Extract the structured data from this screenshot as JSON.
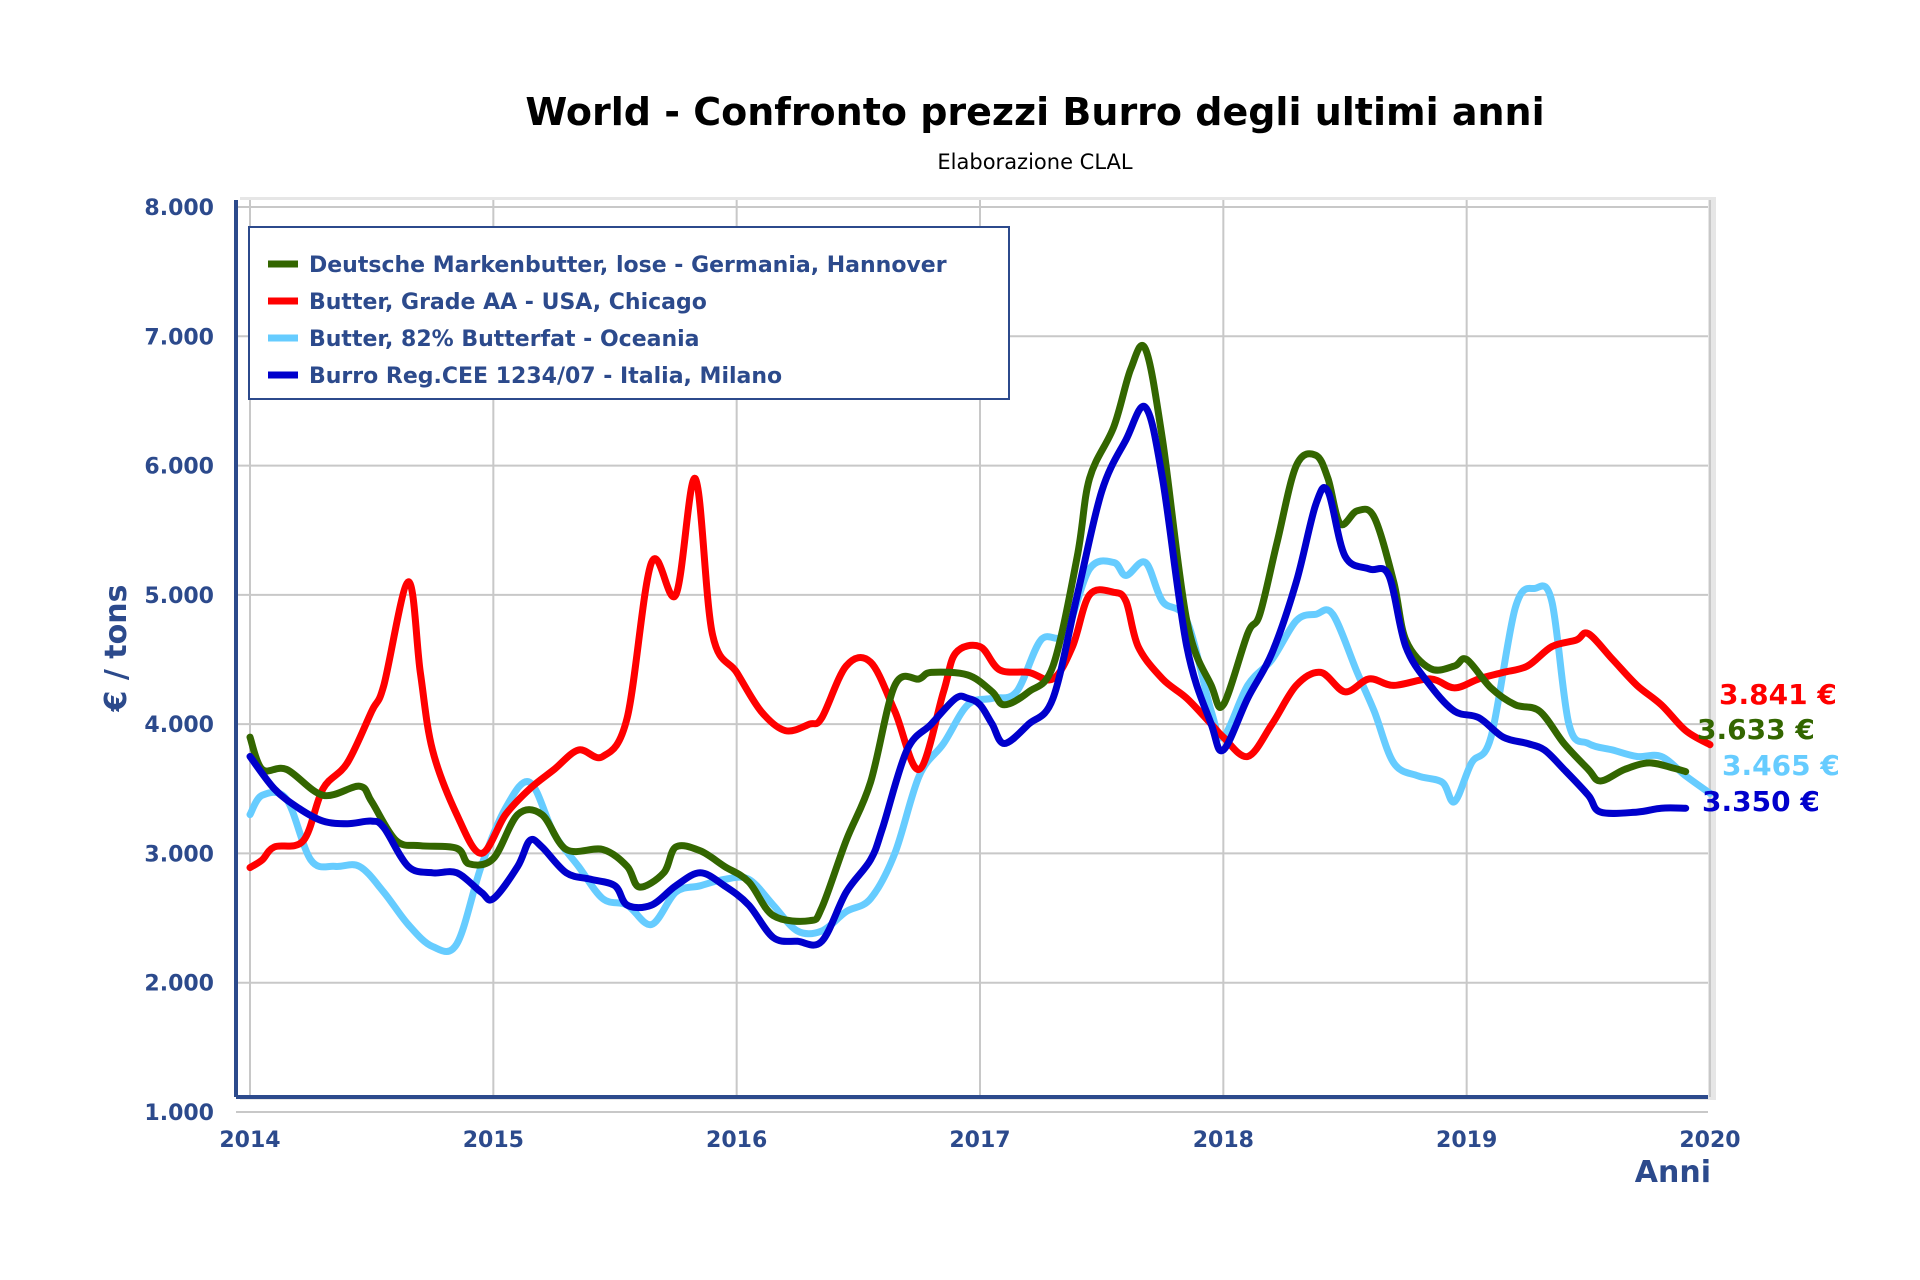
{
  "chart_data": {
    "type": "line",
    "title": "World - Confronto prezzi Burro degli ultimi anni",
    "subtitle": "Elaborazione CLAL",
    "ylabel": "€ / tons",
    "xlabel": "Anni",
    "xlim": [
      2014,
      2020
    ],
    "ylim": [
      1000,
      8000
    ],
    "x_ticks": [
      "2014",
      "2015",
      "2016",
      "2017",
      "2018",
      "2019",
      "2020"
    ],
    "y_ticks": [
      "1.000",
      "2.000",
      "3.000",
      "4.000",
      "5.000",
      "6.000",
      "7.000",
      "8.000"
    ],
    "grid": true,
    "legend_position": "top-left",
    "series": [
      {
        "name": "Deutsche Markenbutter, lose - Germania, Hannover",
        "color": "#336600",
        "end_label": "3.633 €",
        "points": [
          [
            2014.0,
            3900
          ],
          [
            2014.05,
            3650
          ],
          [
            2014.15,
            3650
          ],
          [
            2014.3,
            3450
          ],
          [
            2014.45,
            3520
          ],
          [
            2014.5,
            3400
          ],
          [
            2014.6,
            3100
          ],
          [
            2014.7,
            3060
          ],
          [
            2014.85,
            3040
          ],
          [
            2014.9,
            2920
          ],
          [
            2015.0,
            2960
          ],
          [
            2015.1,
            3300
          ],
          [
            2015.2,
            3300
          ],
          [
            2015.3,
            3030
          ],
          [
            2015.45,
            3030
          ],
          [
            2015.55,
            2900
          ],
          [
            2015.6,
            2740
          ],
          [
            2015.7,
            2850
          ],
          [
            2015.75,
            3050
          ],
          [
            2015.85,
            3020
          ],
          [
            2015.95,
            2900
          ],
          [
            2016.05,
            2780
          ],
          [
            2016.15,
            2520
          ],
          [
            2016.3,
            2480
          ],
          [
            2016.35,
            2580
          ],
          [
            2016.45,
            3100
          ],
          [
            2016.55,
            3550
          ],
          [
            2016.65,
            4300
          ],
          [
            2016.75,
            4350
          ],
          [
            2016.8,
            4400
          ],
          [
            2016.95,
            4380
          ],
          [
            2017.05,
            4250
          ],
          [
            2017.1,
            4150
          ],
          [
            2017.2,
            4250
          ],
          [
            2017.3,
            4450
          ],
          [
            2017.4,
            5300
          ],
          [
            2017.45,
            5900
          ],
          [
            2017.55,
            6300
          ],
          [
            2017.62,
            6750
          ],
          [
            2017.68,
            6900
          ],
          [
            2017.75,
            6200
          ],
          [
            2017.85,
            4800
          ],
          [
            2017.95,
            4300
          ],
          [
            2018.0,
            4150
          ],
          [
            2018.1,
            4700
          ],
          [
            2018.15,
            4850
          ],
          [
            2018.22,
            5400
          ],
          [
            2018.3,
            6000
          ],
          [
            2018.38,
            6080
          ],
          [
            2018.43,
            5900
          ],
          [
            2018.48,
            5550
          ],
          [
            2018.55,
            5650
          ],
          [
            2018.62,
            5600
          ],
          [
            2018.7,
            5100
          ],
          [
            2018.75,
            4650
          ],
          [
            2018.85,
            4430
          ],
          [
            2018.95,
            4450
          ],
          [
            2019.0,
            4500
          ],
          [
            2019.1,
            4280
          ],
          [
            2019.2,
            4150
          ],
          [
            2019.3,
            4100
          ],
          [
            2019.4,
            3850
          ],
          [
            2019.5,
            3650
          ],
          [
            2019.55,
            3560
          ],
          [
            2019.65,
            3650
          ],
          [
            2019.75,
            3700
          ],
          [
            2019.85,
            3660
          ],
          [
            2019.9,
            3633
          ]
        ]
      },
      {
        "name": "Butter, Grade AA - USA, Chicago",
        "color": "#ff0000",
        "end_label": "3.841 €",
        "points": [
          [
            2014.0,
            2890
          ],
          [
            2014.05,
            2950
          ],
          [
            2014.1,
            3050
          ],
          [
            2014.22,
            3100
          ],
          [
            2014.3,
            3500
          ],
          [
            2014.4,
            3700
          ],
          [
            2014.5,
            4100
          ],
          [
            2014.55,
            4300
          ],
          [
            2014.65,
            5100
          ],
          [
            2014.7,
            4400
          ],
          [
            2014.75,
            3800
          ],
          [
            2014.85,
            3300
          ],
          [
            2014.95,
            3000
          ],
          [
            2015.05,
            3300
          ],
          [
            2015.15,
            3500
          ],
          [
            2015.25,
            3650
          ],
          [
            2015.35,
            3800
          ],
          [
            2015.45,
            3750
          ],
          [
            2015.55,
            4050
          ],
          [
            2015.65,
            5250
          ],
          [
            2015.75,
            5000
          ],
          [
            2015.83,
            5900
          ],
          [
            2015.9,
            4700
          ],
          [
            2016.0,
            4400
          ],
          [
            2016.1,
            4100
          ],
          [
            2016.2,
            3950
          ],
          [
            2016.3,
            4000
          ],
          [
            2016.35,
            4050
          ],
          [
            2016.45,
            4450
          ],
          [
            2016.55,
            4480
          ],
          [
            2016.65,
            4100
          ],
          [
            2016.75,
            3650
          ],
          [
            2016.85,
            4250
          ],
          [
            2016.9,
            4550
          ],
          [
            2017.0,
            4600
          ],
          [
            2017.08,
            4420
          ],
          [
            2017.2,
            4400
          ],
          [
            2017.3,
            4350
          ],
          [
            2017.38,
            4600
          ],
          [
            2017.45,
            5000
          ],
          [
            2017.55,
            5020
          ],
          [
            2017.6,
            4950
          ],
          [
            2017.65,
            4600
          ],
          [
            2017.75,
            4350
          ],
          [
            2017.85,
            4200
          ],
          [
            2017.95,
            4000
          ],
          [
            2018.0,
            3900
          ],
          [
            2018.1,
            3750
          ],
          [
            2018.2,
            4000
          ],
          [
            2018.3,
            4300
          ],
          [
            2018.4,
            4400
          ],
          [
            2018.5,
            4250
          ],
          [
            2018.6,
            4350
          ],
          [
            2018.7,
            4300
          ],
          [
            2018.85,
            4350
          ],
          [
            2018.95,
            4280
          ],
          [
            2019.05,
            4350
          ],
          [
            2019.15,
            4400
          ],
          [
            2019.25,
            4450
          ],
          [
            2019.35,
            4600
          ],
          [
            2019.45,
            4650
          ],
          [
            2019.5,
            4700
          ],
          [
            2019.6,
            4500
          ],
          [
            2019.7,
            4300
          ],
          [
            2019.8,
            4150
          ],
          [
            2019.9,
            3950
          ],
          [
            2020.0,
            3841
          ]
        ]
      },
      {
        "name": "Butter, 82% Butterfat - Oceania",
        "color": "#66ccff",
        "end_label": "3.465 €",
        "points": [
          [
            2014.0,
            3300
          ],
          [
            2014.05,
            3450
          ],
          [
            2014.15,
            3420
          ],
          [
            2014.25,
            2950
          ],
          [
            2014.35,
            2900
          ],
          [
            2014.45,
            2900
          ],
          [
            2014.55,
            2700
          ],
          [
            2014.65,
            2450
          ],
          [
            2014.75,
            2280
          ],
          [
            2014.85,
            2300
          ],
          [
            2014.95,
            2900
          ],
          [
            2015.05,
            3350
          ],
          [
            2015.15,
            3550
          ],
          [
            2015.25,
            3150
          ],
          [
            2015.35,
            2900
          ],
          [
            2015.45,
            2650
          ],
          [
            2015.55,
            2600
          ],
          [
            2015.65,
            2450
          ],
          [
            2015.75,
            2700
          ],
          [
            2015.85,
            2750
          ],
          [
            2015.95,
            2800
          ],
          [
            2016.05,
            2800
          ],
          [
            2016.15,
            2600
          ],
          [
            2016.25,
            2400
          ],
          [
            2016.35,
            2400
          ],
          [
            2016.45,
            2550
          ],
          [
            2016.55,
            2650
          ],
          [
            2016.65,
            3000
          ],
          [
            2016.75,
            3600
          ],
          [
            2016.85,
            3850
          ],
          [
            2016.95,
            4150
          ],
          [
            2017.05,
            4200
          ],
          [
            2017.15,
            4250
          ],
          [
            2017.25,
            4650
          ],
          [
            2017.35,
            4700
          ],
          [
            2017.45,
            5200
          ],
          [
            2017.55,
            5250
          ],
          [
            2017.6,
            5150
          ],
          [
            2017.68,
            5250
          ],
          [
            2017.75,
            4950
          ],
          [
            2017.85,
            4800
          ],
          [
            2017.95,
            4100
          ],
          [
            2018.0,
            3900
          ],
          [
            2018.1,
            4300
          ],
          [
            2018.2,
            4500
          ],
          [
            2018.3,
            4800
          ],
          [
            2018.38,
            4850
          ],
          [
            2018.45,
            4850
          ],
          [
            2018.55,
            4400
          ],
          [
            2018.62,
            4100
          ],
          [
            2018.7,
            3700
          ],
          [
            2018.8,
            3600
          ],
          [
            2018.9,
            3550
          ],
          [
            2018.95,
            3400
          ],
          [
            2019.02,
            3700
          ],
          [
            2019.1,
            3900
          ],
          [
            2019.2,
            4900
          ],
          [
            2019.28,
            5050
          ],
          [
            2019.35,
            4950
          ],
          [
            2019.42,
            4000
          ],
          [
            2019.5,
            3850
          ],
          [
            2019.6,
            3800
          ],
          [
            2019.7,
            3750
          ],
          [
            2019.8,
            3750
          ],
          [
            2019.9,
            3600
          ],
          [
            2020.0,
            3465
          ]
        ]
      },
      {
        "name": "Burro Reg.CEE 1234/07 - Italia, Milano",
        "color": "#0000cc",
        "end_label": "3.350 €",
        "points": [
          [
            2014.0,
            3750
          ],
          [
            2014.1,
            3500
          ],
          [
            2014.2,
            3350
          ],
          [
            2014.3,
            3250
          ],
          [
            2014.4,
            3230
          ],
          [
            2014.5,
            3250
          ],
          [
            2014.55,
            3200
          ],
          [
            2014.65,
            2900
          ],
          [
            2014.75,
            2850
          ],
          [
            2014.85,
            2850
          ],
          [
            2014.95,
            2700
          ],
          [
            2015.0,
            2650
          ],
          [
            2015.1,
            2900
          ],
          [
            2015.15,
            3100
          ],
          [
            2015.2,
            3050
          ],
          [
            2015.3,
            2850
          ],
          [
            2015.4,
            2800
          ],
          [
            2015.5,
            2750
          ],
          [
            2015.55,
            2600
          ],
          [
            2015.65,
            2600
          ],
          [
            2015.75,
            2750
          ],
          [
            2015.85,
            2850
          ],
          [
            2015.95,
            2750
          ],
          [
            2016.05,
            2600
          ],
          [
            2016.15,
            2350
          ],
          [
            2016.25,
            2320
          ],
          [
            2016.35,
            2320
          ],
          [
            2016.45,
            2700
          ],
          [
            2016.55,
            2950
          ],
          [
            2016.6,
            3200
          ],
          [
            2016.7,
            3800
          ],
          [
            2016.8,
            4000
          ],
          [
            2016.9,
            4200
          ],
          [
            2016.95,
            4200
          ],
          [
            2017.0,
            4150
          ],
          [
            2017.05,
            4000
          ],
          [
            2017.1,
            3850
          ],
          [
            2017.2,
            4000
          ],
          [
            2017.3,
            4200
          ],
          [
            2017.4,
            5000
          ],
          [
            2017.5,
            5800
          ],
          [
            2017.6,
            6200
          ],
          [
            2017.68,
            6450
          ],
          [
            2017.75,
            5900
          ],
          [
            2017.85,
            4600
          ],
          [
            2017.95,
            4000
          ],
          [
            2018.0,
            3800
          ],
          [
            2018.1,
            4200
          ],
          [
            2018.2,
            4550
          ],
          [
            2018.3,
            5100
          ],
          [
            2018.38,
            5700
          ],
          [
            2018.43,
            5800
          ],
          [
            2018.5,
            5300
          ],
          [
            2018.6,
            5200
          ],
          [
            2018.68,
            5150
          ],
          [
            2018.75,
            4600
          ],
          [
            2018.85,
            4300
          ],
          [
            2018.95,
            4100
          ],
          [
            2019.05,
            4050
          ],
          [
            2019.15,
            3900
          ],
          [
            2019.25,
            3850
          ],
          [
            2019.32,
            3800
          ],
          [
            2019.4,
            3650
          ],
          [
            2019.5,
            3450
          ],
          [
            2019.55,
            3320
          ],
          [
            2019.7,
            3320
          ],
          [
            2019.8,
            3350
          ],
          [
            2019.9,
            3350
          ]
        ]
      }
    ]
  }
}
